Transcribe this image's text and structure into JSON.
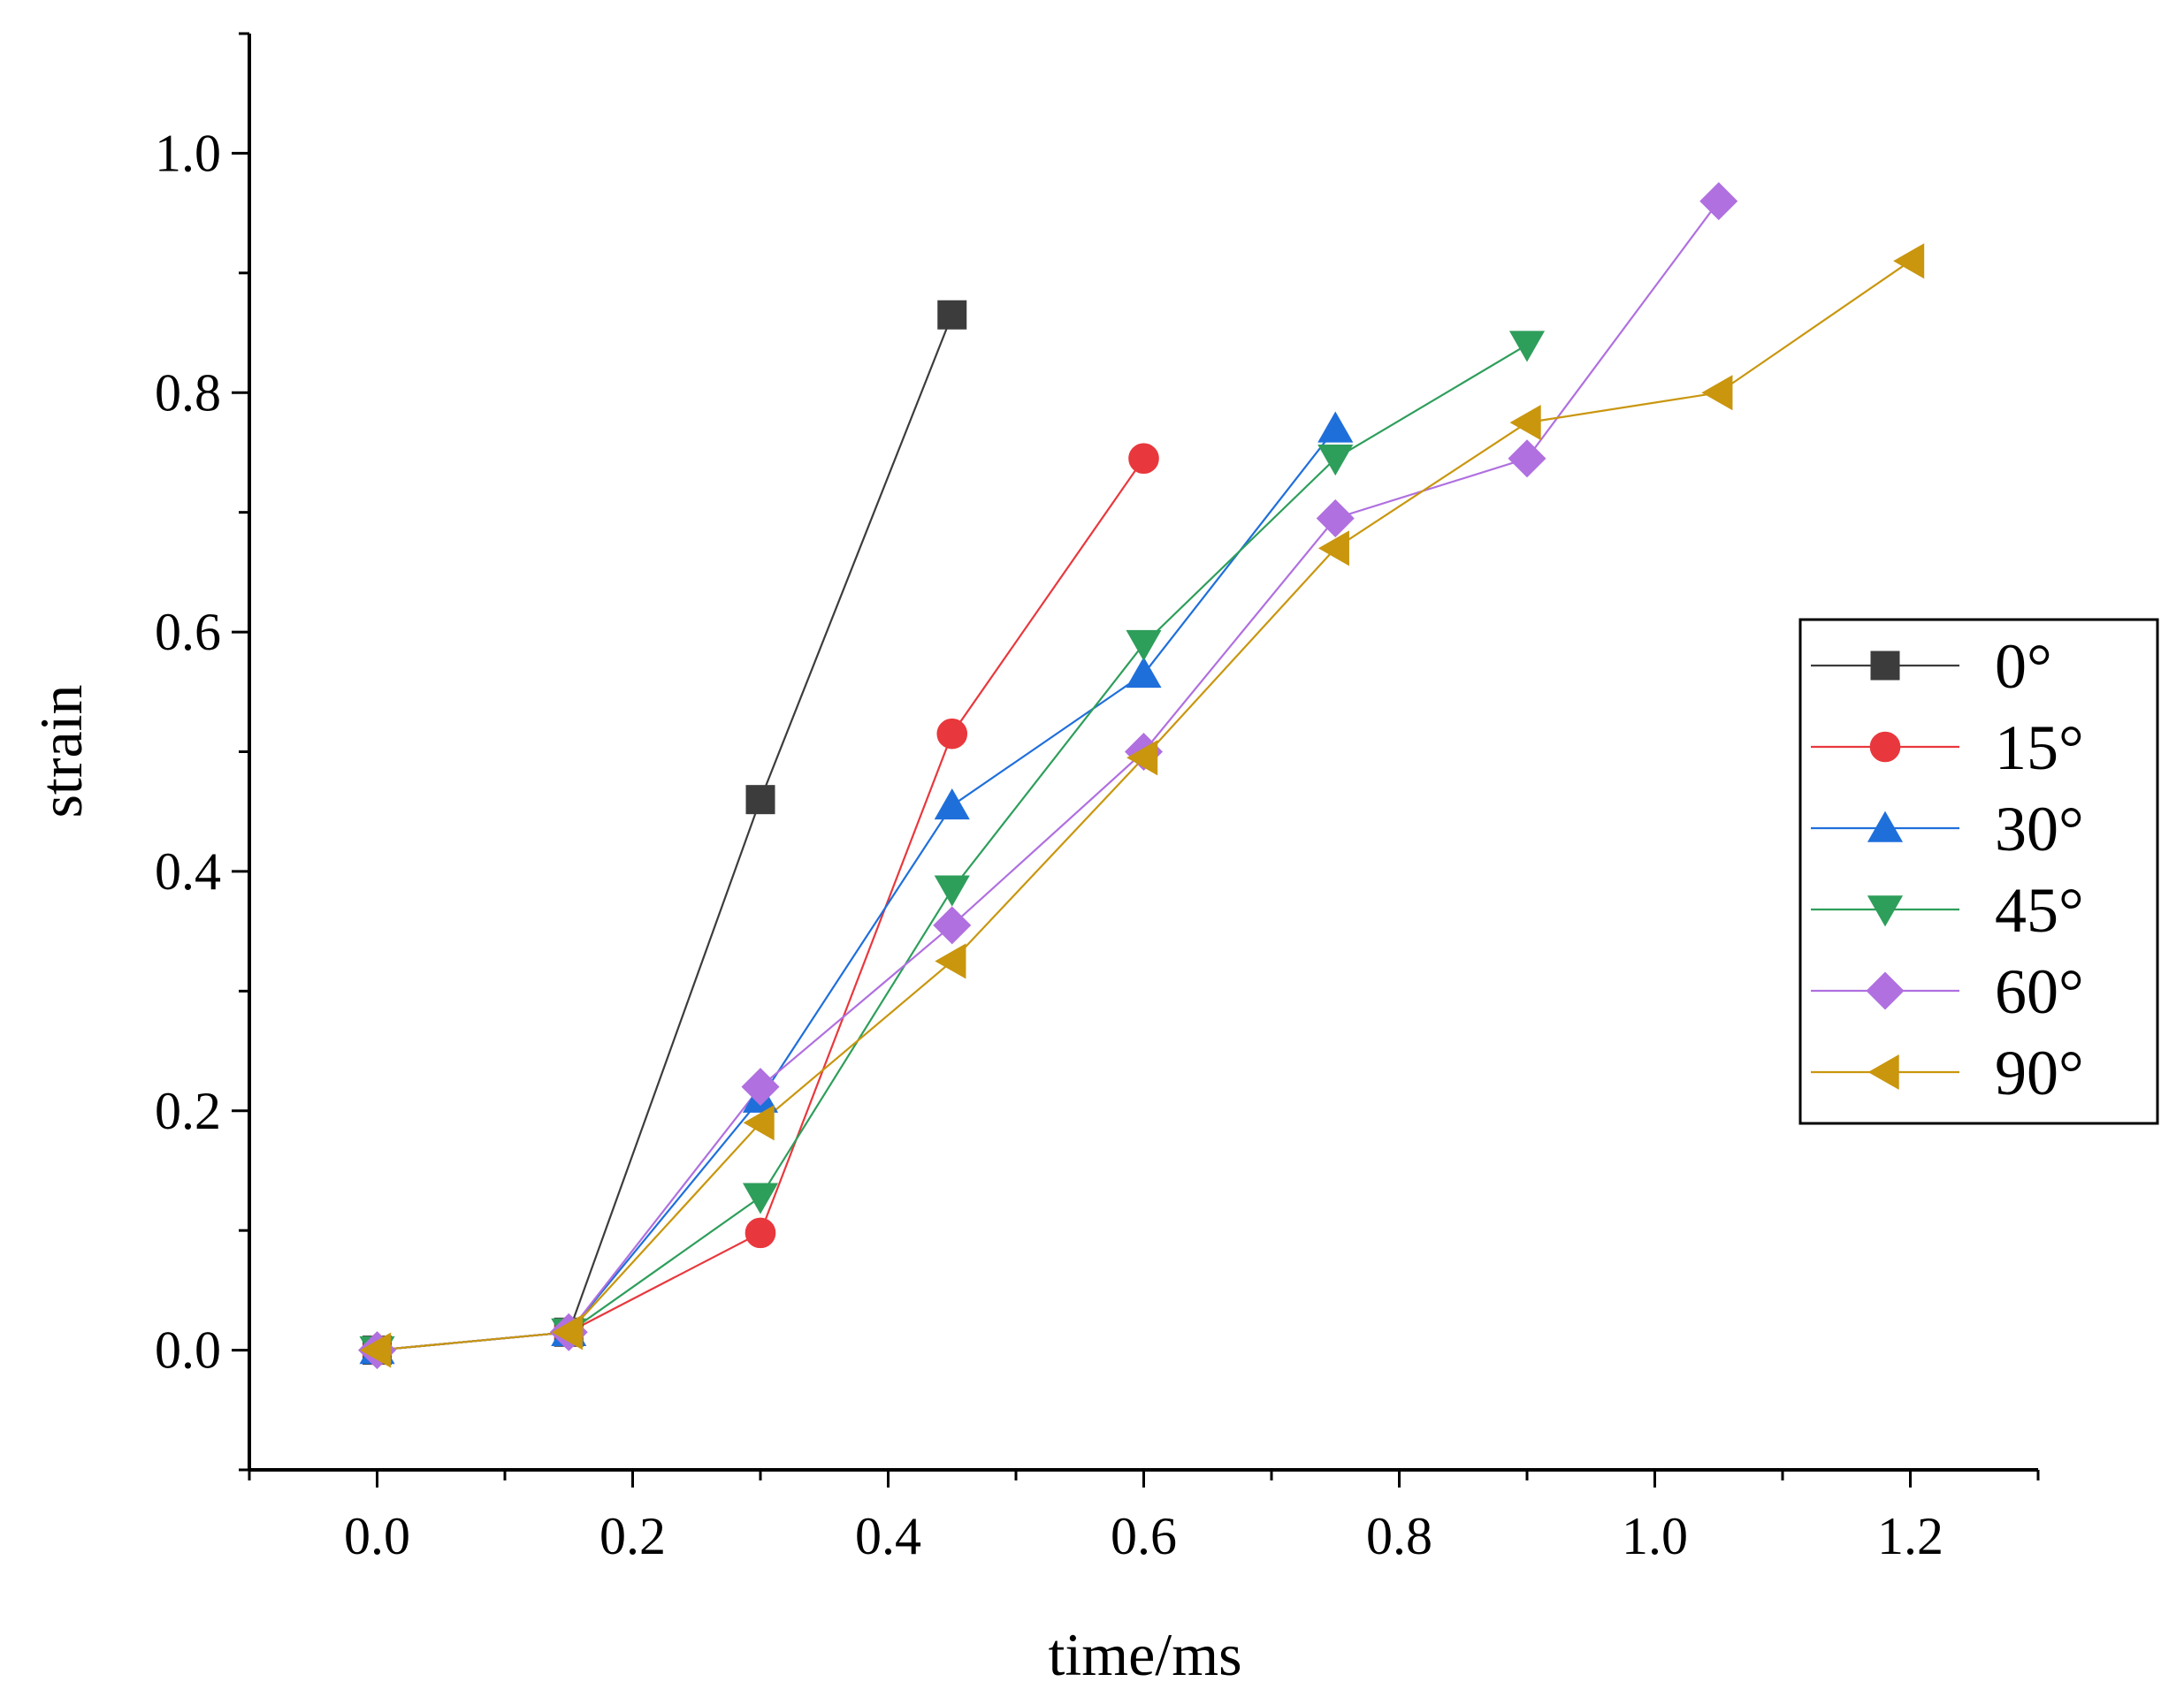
{
  "chart_data": {
    "type": "line",
    "title": "",
    "xlabel": "time/ms",
    "ylabel": "strain",
    "xlim": [
      -0.1,
      1.3
    ],
    "ylim": [
      -0.1,
      1.1
    ],
    "x_ticks": [
      0.0,
      0.2,
      0.4,
      0.6,
      0.8,
      1.0,
      1.2
    ],
    "x_tick_labels": [
      "0.0",
      "0.2",
      "0.4",
      "0.6",
      "0.8",
      "1.0",
      "1.2"
    ],
    "y_ticks": [
      0.0,
      0.2,
      0.4,
      0.6,
      0.8,
      1.0
    ],
    "y_tick_labels": [
      "0.0",
      "0.2",
      "0.4",
      "0.6",
      "0.8",
      "1.0"
    ],
    "grid": false,
    "legend_position": "right",
    "series": [
      {
        "name": "0°",
        "color": "#3c3c3c",
        "marker": "square",
        "x": [
          0.0,
          0.15,
          0.3,
          0.45
        ],
        "y": [
          0.0,
          0.015,
          0.46,
          0.865
        ]
      },
      {
        "name": "15°",
        "color": "#e8383d",
        "marker": "circle",
        "x": [
          0.0,
          0.15,
          0.3,
          0.45,
          0.6
        ],
        "y": [
          0.0,
          0.015,
          0.098,
          0.515,
          0.745
        ]
      },
      {
        "name": "30°",
        "color": "#1f6fdb",
        "marker": "triangle-up",
        "x": [
          0.0,
          0.15,
          0.3,
          0.45,
          0.6,
          0.75
        ],
        "y": [
          0.0,
          0.015,
          0.21,
          0.455,
          0.565,
          0.77
        ]
      },
      {
        "name": "45°",
        "color": "#2e9e5b",
        "marker": "triangle-down",
        "x": [
          0.0,
          0.15,
          0.3,
          0.45,
          0.6,
          0.75,
          0.9
        ],
        "y": [
          0.0,
          0.015,
          0.128,
          0.385,
          0.59,
          0.745,
          0.84
        ]
      },
      {
        "name": "60°",
        "color": "#b070e0",
        "marker": "diamond",
        "x": [
          0.0,
          0.15,
          0.3,
          0.45,
          0.6,
          0.75,
          0.9,
          1.05
        ],
        "y": [
          0.0,
          0.015,
          0.22,
          0.355,
          0.5,
          0.695,
          0.745,
          0.96
        ]
      },
      {
        "name": "90°",
        "color": "#c9960e",
        "marker": "triangle-left",
        "x": [
          0.0,
          0.15,
          0.3,
          0.45,
          0.6,
          0.75,
          0.9,
          1.05,
          1.2
        ],
        "y": [
          0.0,
          0.015,
          0.19,
          0.325,
          0.495,
          0.67,
          0.775,
          0.8,
          0.91
        ]
      }
    ]
  }
}
